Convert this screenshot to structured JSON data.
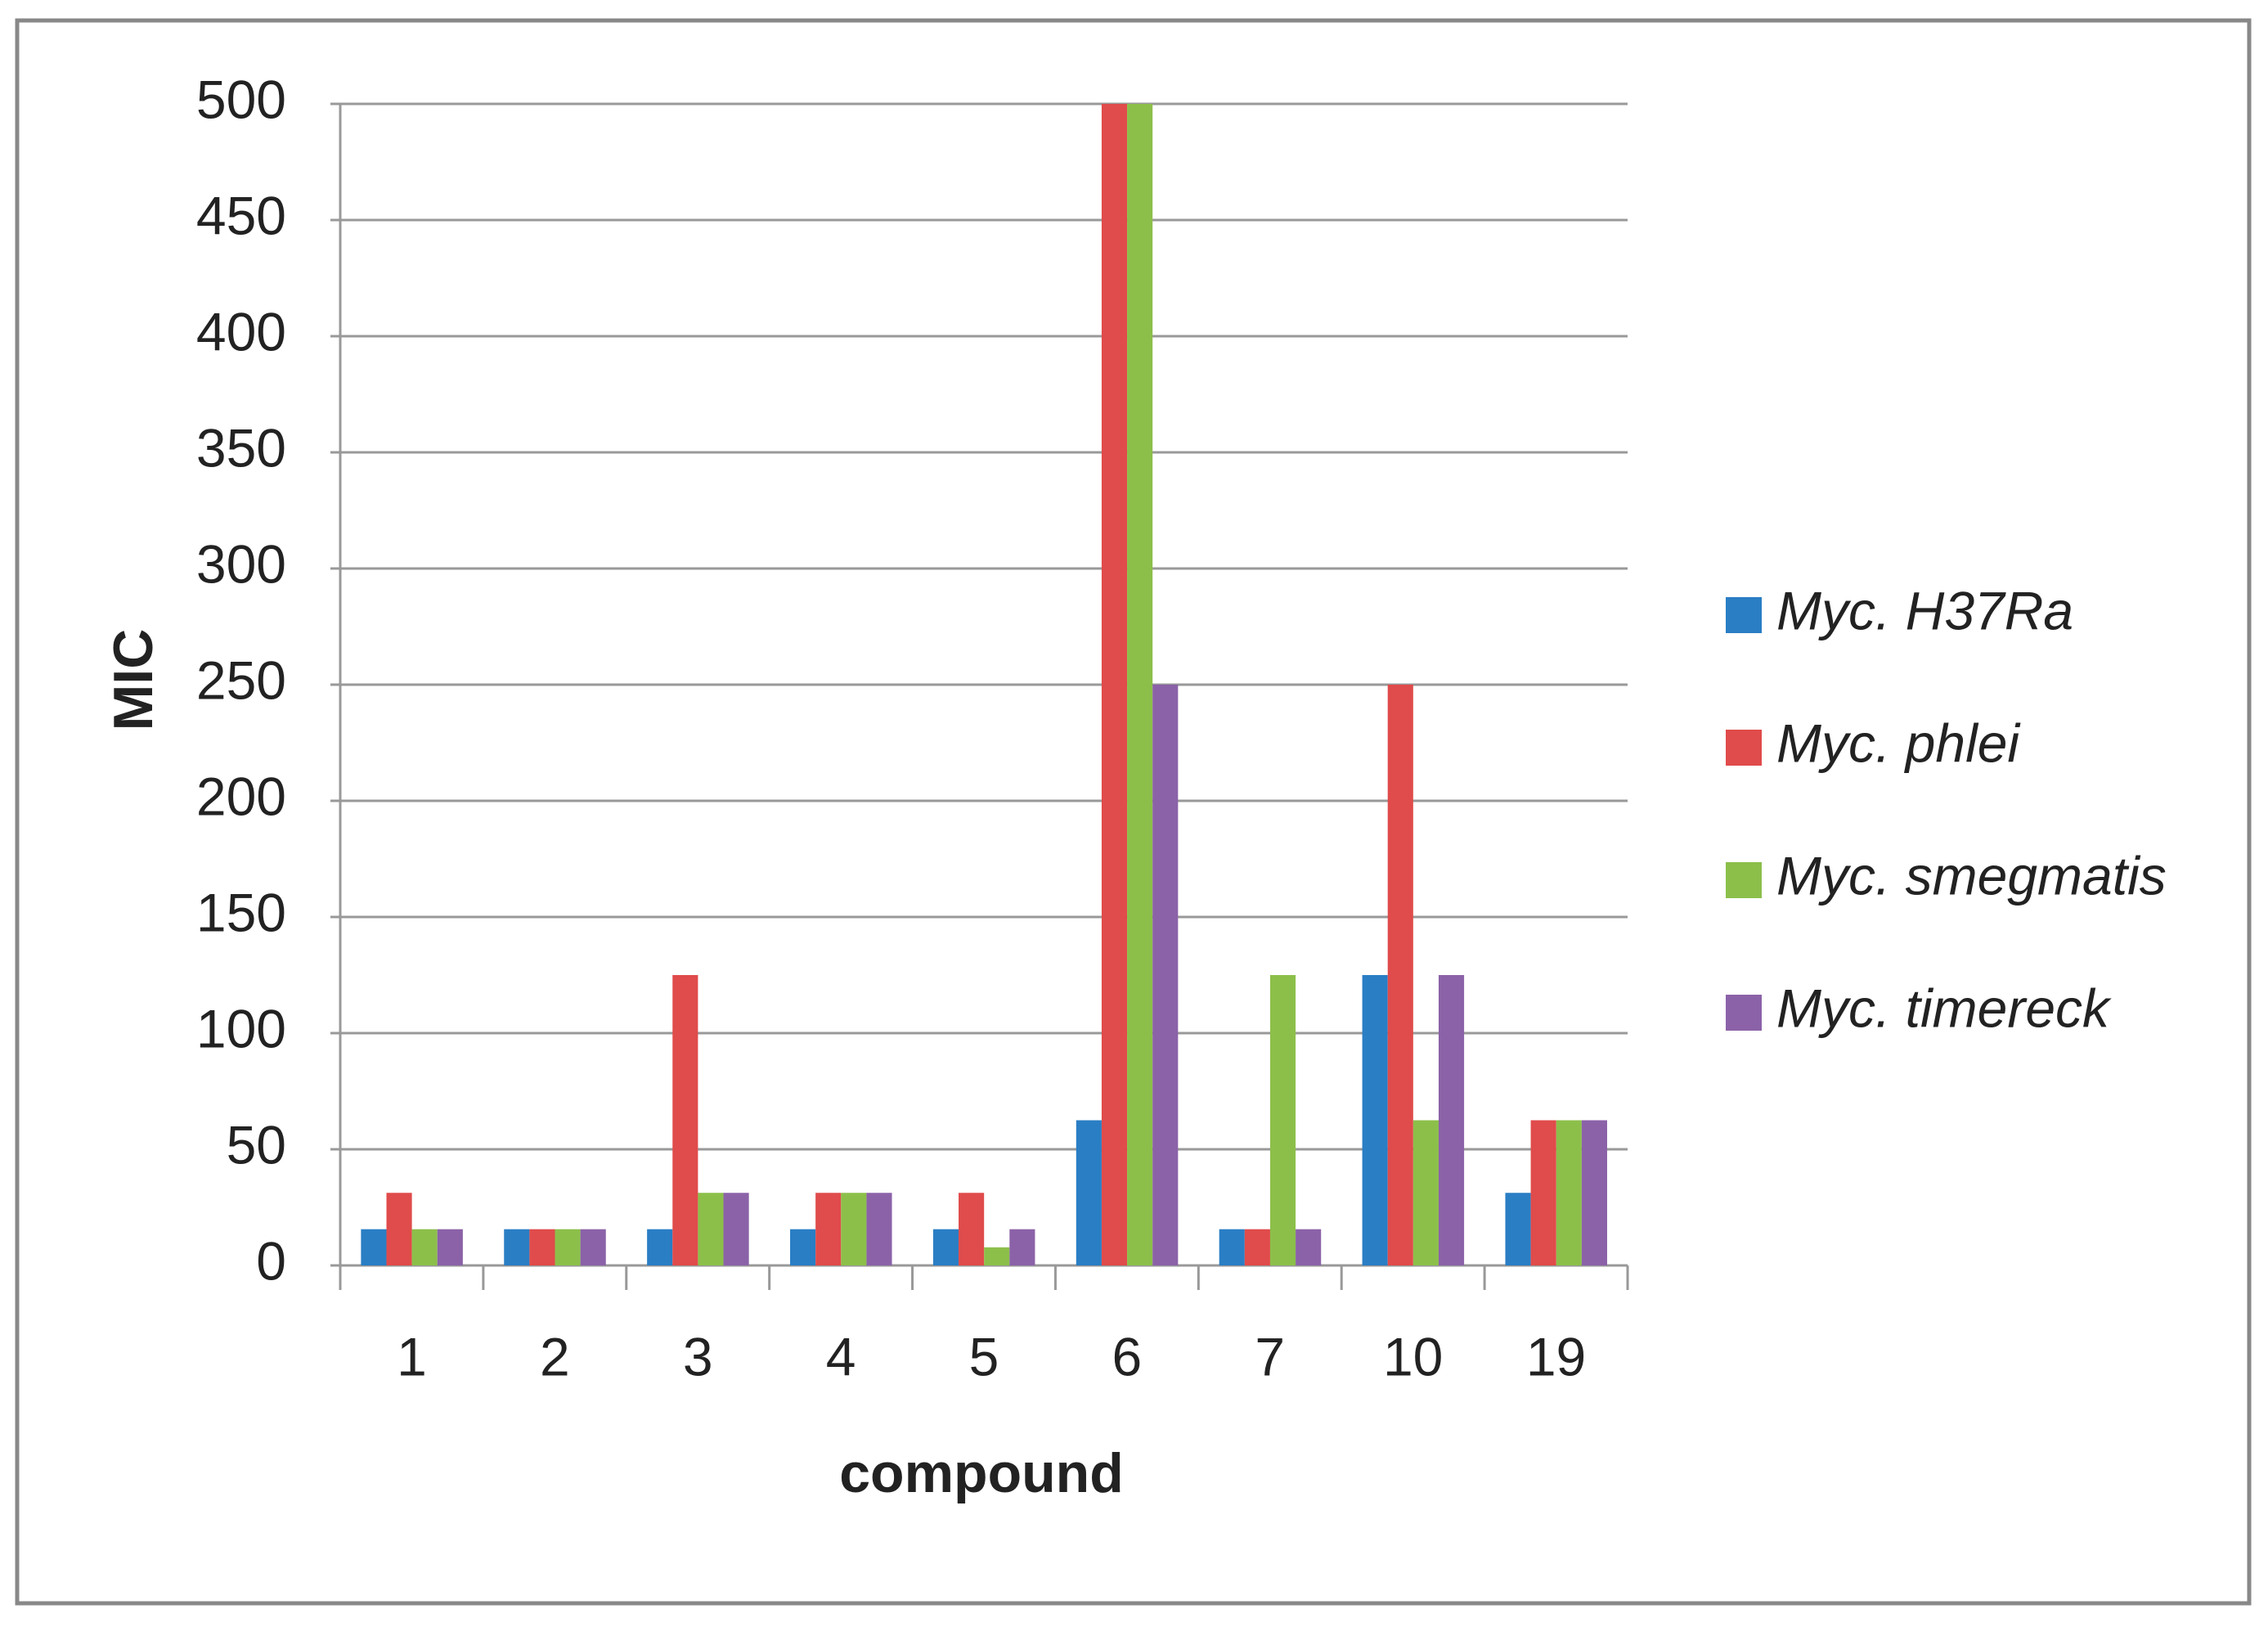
{
  "chart_data": {
    "type": "bar",
    "x_label": "compound",
    "y_label": "MIC",
    "categories": [
      "1",
      "2",
      "3",
      "4",
      "5",
      "6",
      "7",
      "10",
      "19"
    ],
    "series": [
      {
        "name": "Myc. H37Ra",
        "color": "#2a7ec4",
        "values": [
          15.6,
          15.6,
          15.6,
          15.6,
          15.6,
          62.5,
          15.6,
          125,
          31.25
        ]
      },
      {
        "name": "Myc. phlei",
        "color": "#e04b4b",
        "values": [
          31.25,
          15.6,
          125,
          31.25,
          31.25,
          500,
          15.6,
          250,
          62.5
        ]
      },
      {
        "name": "Myc. smegmatis",
        "color": "#8cbf4a",
        "values": [
          15.6,
          15.6,
          31.25,
          31.25,
          7.8,
          500,
          125,
          62.5,
          62.5
        ]
      },
      {
        "name": "Myc. timereck",
        "color": "#8b62a8",
        "values": [
          15.6,
          15.6,
          31.25,
          31.25,
          15.6,
          250,
          15.6,
          125,
          62.5
        ]
      }
    ],
    "ylim": [
      0,
      500
    ],
    "yticks": [
      0,
      50,
      100,
      150,
      200,
      250,
      300,
      350,
      400,
      450,
      500
    ],
    "grid": true,
    "legend": "right"
  }
}
